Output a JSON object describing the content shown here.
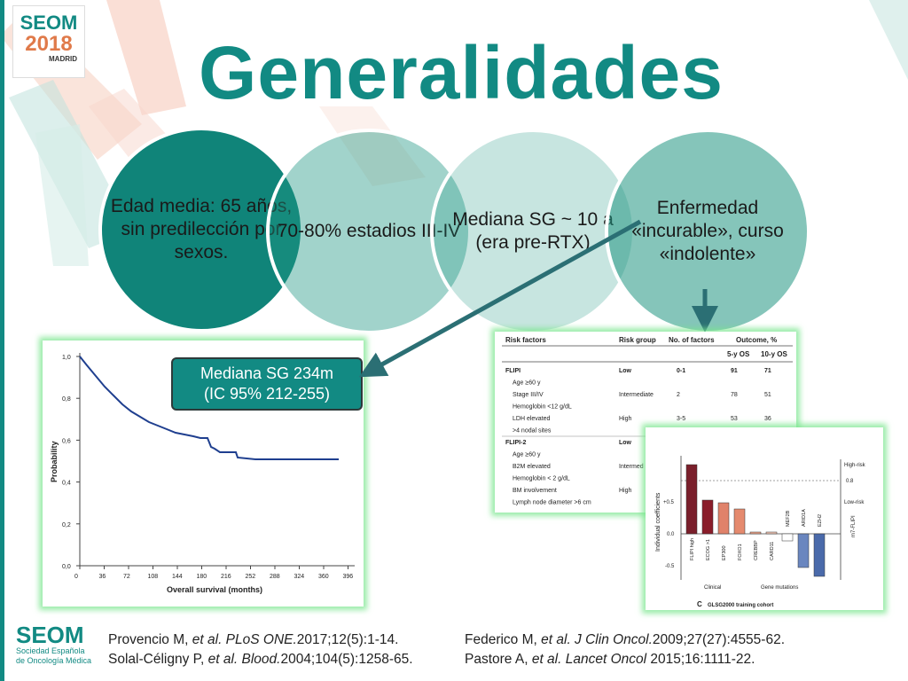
{
  "colors": {
    "teal": "#128a83",
    "circle1": "#108479",
    "arrow": "#2b6f74",
    "glow": "#7de68c"
  },
  "logo": {
    "name": "SEOM",
    "year": "2018",
    "city": "MADRID"
  },
  "title": "Generalidades",
  "circles": [
    {
      "text": "Edad media: 65 años, sin predilección por sexos."
    },
    {
      "text": "70-80% estadios III-IV"
    },
    {
      "text": "Mediana SG ~ 10 a (era pre-RTX)"
    },
    {
      "text": "Enfermedad «incurable», curso «indolente»"
    }
  ],
  "median_box": {
    "line1": "Mediana SG 234m",
    "line2": "(IC 95% 212-255)"
  },
  "km_chart": {
    "ylabel": "Probability",
    "xlabel": "Overall survival (months)",
    "yticks": [
      "1,0",
      "0,8",
      "0,6",
      "0,4",
      "0,2",
      "0,0"
    ],
    "xticks": [
      "0",
      "36",
      "72",
      "108",
      "144",
      "180",
      "216",
      "252",
      "288",
      "324",
      "360",
      "396"
    ]
  },
  "table": {
    "headers": [
      "Risk factors",
      "Risk group",
      "No. of factors",
      "Outcome, %"
    ],
    "subheaders": [
      "5-y OS",
      "10-y OS"
    ],
    "rows": [
      [
        "FLIPI",
        "Low",
        "0-1",
        "91",
        "71"
      ],
      [
        "Age ≥60 y",
        "",
        "",
        "",
        ""
      ],
      [
        "Stage III/IV",
        "Intermediate",
        "2",
        "78",
        "51"
      ],
      [
        "Hemoglobin <12 g/dL",
        "",
        "",
        "",
        ""
      ],
      [
        "LDH elevated",
        "High",
        "3-5",
        "53",
        "36"
      ],
      [
        ">4 nodal sites",
        "",
        "",
        "",
        ""
      ],
      [
        "FLIPI-2",
        "Low",
        "",
        "",
        ""
      ],
      [
        "Age ≥60 y",
        "",
        "",
        "",
        ""
      ],
      [
        "B2M elevated",
        "Intermed",
        "",
        "",
        ""
      ],
      [
        "Hemoglobin < 2 g/dL",
        "",
        "",
        "",
        ""
      ],
      [
        "BM involvement",
        "High",
        "",
        "",
        ""
      ],
      [
        "Lymph node diameter >6 cm",
        "",
        "",
        "",
        ""
      ]
    ]
  },
  "coef_chart": {
    "ylabel": "Individual coefficients",
    "yticks": [
      "+0.5",
      "0.0",
      "-0.5"
    ],
    "bars": [
      "FLIPI high",
      "ECOG >1",
      "EP300",
      "FOXO1",
      "CREBBP",
      "CARD11",
      "MEF2B",
      "ARID1A",
      "EZH2"
    ],
    "values": [
      0.78,
      0.38,
      0.35,
      0.28,
      0.02,
      0.02,
      -0.08,
      -0.38,
      -0.48
    ],
    "group_labels": [
      "Clinical",
      "Gene mutations"
    ],
    "right_labels": [
      "High-risk",
      "0.8",
      "Low-risk",
      "m7-FLIPI"
    ],
    "caption": "GLSG2000 training cohort",
    "panel_letter": "C"
  },
  "footer": {
    "logo_name": "SEOM",
    "logo_sub1": "Sociedad Española",
    "logo_sub2": "de Oncología Médica",
    "refs": [
      {
        "authors": "Provencio M, ",
        "etal": "et al. PLoS ONE.",
        "rest": "2017;12(5):1-14."
      },
      {
        "authors": "Solal-Céligny P, ",
        "etal": "et al. Blood.",
        "rest": "2004;104(5):1258-65."
      },
      {
        "authors": "Federico M, ",
        "etal": "et al. J Clin Oncol.",
        "rest": "2009;27(27):4555-62."
      },
      {
        "authors": "Pastore A, ",
        "etal": "et al. Lancet Oncol",
        "rest": " 2015;16:1111-22."
      }
    ]
  }
}
